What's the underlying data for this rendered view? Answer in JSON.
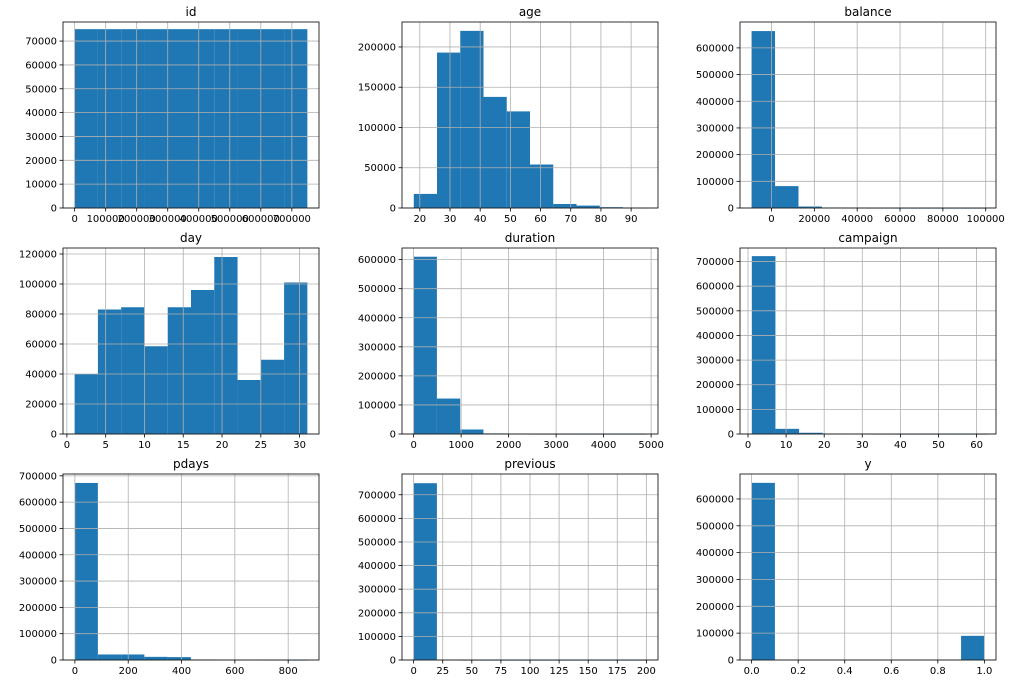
{
  "chart_data": [
    {
      "type": "bar",
      "title": "id",
      "xlim": [
        -37500,
        787500
      ],
      "ylim": [
        0,
        78000
      ],
      "xticks": [
        0,
        100000,
        200000,
        300000,
        400000,
        500000,
        600000,
        700000
      ],
      "yticks": [
        0,
        10000,
        20000,
        30000,
        40000,
        50000,
        60000,
        70000
      ],
      "bin_edges": [
        0,
        75000,
        150000,
        225000,
        300000,
        375000,
        450000,
        525000,
        600000,
        675000,
        750000
      ],
      "values": [
        75000,
        75000,
        75000,
        75000,
        75000,
        75000,
        75000,
        75000,
        75000,
        75000
      ]
    },
    {
      "type": "bar",
      "title": "age",
      "xlim": [
        14.1,
        98.9
      ],
      "ylim": [
        0,
        231000
      ],
      "xticks": [
        20,
        30,
        40,
        50,
        60,
        70,
        80,
        90
      ],
      "yticks": [
        0,
        50000,
        100000,
        150000,
        200000
      ],
      "bin_edges": [
        18,
        25.7,
        33.4,
        41.1,
        48.8,
        56.5,
        64.2,
        71.9,
        79.6,
        87.3,
        95
      ],
      "values": [
        17500,
        193000,
        220000,
        138000,
        120000,
        54000,
        5000,
        3000,
        1000,
        300
      ]
    },
    {
      "type": "bar",
      "title": "balance",
      "xlim": [
        -14700,
        104800
      ],
      "ylim": [
        0,
        697000
      ],
      "xticks": [
        0,
        20000,
        40000,
        60000,
        80000,
        100000
      ],
      "yticks": [
        0,
        100000,
        200000,
        300000,
        400000,
        500000,
        600000
      ],
      "bin_edges": [
        -9300,
        1650,
        12600,
        23550,
        34500,
        45450,
        56400,
        67350,
        78300,
        89250,
        100200
      ],
      "values": [
        663000,
        82000,
        5500,
        1500,
        400,
        200,
        100,
        50,
        30,
        10
      ]
    },
    {
      "type": "bar",
      "title": "day",
      "xlim": [
        -0.5,
        32.5
      ],
      "ylim": [
        0,
        124000
      ],
      "xticks": [
        0,
        5,
        10,
        15,
        20,
        25,
        30
      ],
      "yticks": [
        0,
        20000,
        40000,
        60000,
        80000,
        100000,
        120000
      ],
      "bin_edges": [
        1,
        4,
        7,
        10,
        13,
        16,
        19,
        22,
        25,
        28,
        31
      ],
      "values": [
        40000,
        83000,
        84500,
        58500,
        84500,
        96000,
        118000,
        36000,
        49500,
        101000
      ]
    },
    {
      "type": "bar",
      "title": "duration",
      "xlim": [
        -245,
        5145
      ],
      "ylim": [
        0,
        640000
      ],
      "xticks": [
        0,
        1000,
        2000,
        3000,
        4000,
        5000
      ],
      "yticks": [
        0,
        100000,
        200000,
        300000,
        400000,
        500000,
        600000
      ],
      "bin_edges": [
        0,
        490,
        980,
        1470,
        1960,
        2450,
        2940,
        3430,
        3920,
        4410,
        4900
      ],
      "values": [
        610000,
        122000,
        15500,
        2000,
        300,
        100,
        50,
        20,
        10,
        5
      ]
    },
    {
      "type": "bar",
      "title": "campaign",
      "xlim": [
        -2.1,
        65.1
      ],
      "ylim": [
        0,
        755000
      ],
      "xticks": [
        0,
        10,
        20,
        30,
        40,
        50,
        60
      ],
      "yticks": [
        0,
        100000,
        200000,
        300000,
        400000,
        500000,
        600000,
        700000
      ],
      "bin_edges": [
        1,
        7.2,
        13.4,
        19.6,
        25.8,
        32,
        38.2,
        44.4,
        50.6,
        56.8,
        63
      ],
      "values": [
        722000,
        21000,
        5000,
        1000,
        500,
        200,
        100,
        50,
        30,
        10
      ]
    },
    {
      "type": "bar",
      "title": "pdays",
      "xlim": [
        -44.6,
        915.6
      ],
      "ylim": [
        0,
        707000
      ],
      "xticks": [
        0,
        200,
        400,
        600,
        800
      ],
      "yticks": [
        0,
        100000,
        200000,
        300000,
        400000,
        500000,
        600000,
        700000
      ],
      "bin_edges": [
        -1,
        86.2,
        173.4,
        260.6,
        347.8,
        435,
        522.2,
        609.4,
        696.6,
        783.8,
        871
      ],
      "values": [
        673000,
        21000,
        21000,
        12000,
        11000,
        2000,
        1000,
        500,
        300,
        100
      ]
    },
    {
      "type": "bar",
      "title": "previous",
      "xlim": [
        -10,
        210
      ],
      "ylim": [
        0,
        788000
      ],
      "xticks": [
        0,
        25,
        50,
        75,
        100,
        125,
        150,
        175,
        200
      ],
      "yticks": [
        0,
        100000,
        200000,
        300000,
        400000,
        500000,
        600000,
        700000
      ],
      "bin_edges": [
        0,
        20,
        40,
        60,
        80,
        100,
        120,
        140,
        160,
        180,
        200
      ],
      "values": [
        749000,
        700,
        150,
        50,
        20,
        10,
        5,
        3,
        2,
        1
      ]
    },
    {
      "type": "bar",
      "title": "y",
      "xlim": [
        -0.05,
        1.05
      ],
      "ylim": [
        0,
        693000
      ],
      "xticks": [
        0.0,
        0.2,
        0.4,
        0.6,
        0.8,
        1.0
      ],
      "yticks": [
        0,
        100000,
        200000,
        300000,
        400000,
        500000,
        600000
      ],
      "tick_decimals": 1,
      "bin_edges": [
        0,
        0.1,
        0.2,
        0.3,
        0.4,
        0.5,
        0.6,
        0.7,
        0.8,
        0.9,
        1.0
      ],
      "values": [
        660000,
        0,
        0,
        0,
        0,
        0,
        0,
        0,
        0,
        90000
      ]
    }
  ]
}
